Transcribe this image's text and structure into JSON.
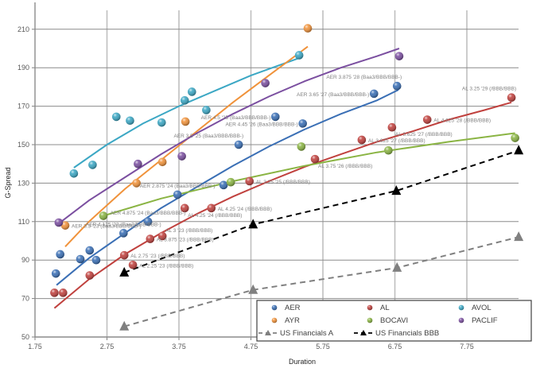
{
  "chart_data": {
    "type": "scatter",
    "title": "",
    "xlabel": "Duration",
    "ylabel": "G-Spread",
    "xlim": [
      1.75,
      8.6
    ],
    "ylim": [
      50,
      220
    ],
    "xticks": [
      1.75,
      2.75,
      3.75,
      4.75,
      5.75,
      6.75,
      7.75
    ],
    "xtick_labels": [
      "1.75",
      "2.75",
      "3.75",
      "4.75",
      "5.75",
      "6.75",
      "7.75"
    ],
    "yticks": [
      50,
      70,
      90,
      110,
      130,
      150,
      170,
      190,
      210
    ],
    "ytick_labels": [
      "50",
      "70",
      "90",
      "110",
      "130",
      "150",
      "170",
      "190",
      "210"
    ],
    "grid": true,
    "legend_position": "bottom-right",
    "series": [
      {
        "name": "AER",
        "kind": "points",
        "color": "#3a6fb5",
        "points": [
          [
            2.04,
            83
          ],
          [
            2.1,
            93
          ],
          [
            2.38,
            90.5
          ],
          [
            2.51,
            95
          ],
          [
            2.6,
            90
          ],
          [
            2.98,
            104
          ],
          [
            3.32,
            110
          ],
          [
            3.73,
            124
          ],
          [
            4.37,
            129
          ],
          [
            4.58,
            150
          ],
          [
            5.09,
            164.5
          ],
          [
            5.47,
            161
          ],
          [
            6.46,
            176.5
          ],
          [
            6.78,
            180.5
          ]
        ],
        "trend": [
          [
            2.05,
            77
          ],
          [
            2.5,
            91
          ],
          [
            3.0,
            104
          ],
          [
            3.5,
            117
          ],
          [
            4.0,
            128
          ],
          [
            4.5,
            139
          ],
          [
            5.0,
            149
          ],
          [
            5.5,
            158
          ],
          [
            6.0,
            166
          ],
          [
            6.5,
            173
          ],
          [
            6.8,
            178.5
          ]
        ]
      },
      {
        "name": "AL",
        "kind": "points",
        "color": "#c0413e",
        "points": [
          [
            2.02,
            73
          ],
          [
            2.14,
            73
          ],
          [
            2.51,
            82
          ],
          [
            2.99,
            92.5
          ],
          [
            3.11,
            87.5
          ],
          [
            3.35,
            101
          ],
          [
            3.52,
            102.5
          ],
          [
            3.83,
            117
          ],
          [
            4.2,
            117
          ],
          [
            4.73,
            131
          ],
          [
            5.64,
            142.5
          ],
          [
            6.29,
            152.5
          ],
          [
            6.71,
            159
          ],
          [
            7.2,
            163
          ],
          [
            8.37,
            174.5
          ]
        ],
        "trend": [
          [
            2.02,
            65
          ],
          [
            2.5,
            80
          ],
          [
            3.0,
            93
          ],
          [
            3.5,
            104
          ],
          [
            4.0,
            114
          ],
          [
            4.5,
            123
          ],
          [
            5.0,
            131
          ],
          [
            5.5,
            138.5
          ],
          [
            6.0,
            145
          ],
          [
            6.5,
            151.5
          ],
          [
            7.0,
            157
          ],
          [
            7.5,
            163
          ],
          [
            8.0,
            168
          ],
          [
            8.37,
            172
          ]
        ]
      },
      {
        "name": "AVOL",
        "kind": "points",
        "color": "#3ba7c4",
        "points": [
          [
            2.29,
            135
          ],
          [
            2.55,
            139.5
          ],
          [
            2.88,
            164.5
          ],
          [
            3.07,
            162.5
          ],
          [
            3.51,
            161.5
          ],
          [
            3.83,
            173
          ],
          [
            3.93,
            177.5
          ],
          [
            4.13,
            168
          ],
          [
            5.42,
            196.5
          ]
        ],
        "trend": [
          [
            2.29,
            138
          ],
          [
            2.75,
            150
          ],
          [
            3.25,
            161
          ],
          [
            3.75,
            170
          ],
          [
            4.25,
            178
          ],
          [
            4.75,
            186
          ],
          [
            5.42,
            195
          ]
        ]
      },
      {
        "name": "AYR",
        "kind": "points",
        "color": "#f0923a",
        "points": [
          [
            2.17,
            108
          ],
          [
            3.16,
            130
          ],
          [
            3.52,
            141
          ],
          [
            3.84,
            162
          ],
          [
            5.54,
            210.5
          ]
        ],
        "trend": [
          [
            2.17,
            97
          ],
          [
            2.5,
            110
          ],
          [
            3.0,
            127
          ],
          [
            3.5,
            142
          ],
          [
            4.0,
            157
          ],
          [
            4.5,
            172
          ],
          [
            5.0,
            186
          ],
          [
            5.54,
            201
          ]
        ]
      },
      {
        "name": "BOCAVI",
        "kind": "points",
        "color": "#8ab443",
        "points": [
          [
            2.7,
            113
          ],
          [
            4.47,
            130.5
          ],
          [
            5.45,
            149
          ],
          [
            6.66,
            147
          ],
          [
            8.42,
            153.5
          ]
        ],
        "trend": [
          [
            2.7,
            113
          ],
          [
            3.5,
            122
          ],
          [
            4.5,
            131
          ],
          [
            5.5,
            139
          ],
          [
            6.5,
            146
          ],
          [
            7.5,
            151.5
          ],
          [
            8.42,
            156
          ]
        ]
      },
      {
        "name": "PACLIF",
        "kind": "points",
        "color": "#7b4fa0",
        "points": [
          [
            2.08,
            109.5
          ],
          [
            3.18,
            140
          ],
          [
            3.79,
            144
          ],
          [
            4.95,
            182
          ],
          [
            6.81,
            196
          ]
        ],
        "trend": [
          [
            2.08,
            109
          ],
          [
            2.5,
            121
          ],
          [
            3.0,
            133
          ],
          [
            3.5,
            145
          ],
          [
            4.0,
            156
          ],
          [
            4.5,
            166
          ],
          [
            5.0,
            175
          ],
          [
            5.5,
            183
          ],
          [
            6.0,
            190
          ],
          [
            6.5,
            196
          ],
          [
            6.81,
            200
          ]
        ]
      },
      {
        "name": "US Financials A",
        "kind": "dashed-triangle",
        "color": "#808080",
        "points": [
          [
            2.99,
            55.5
          ],
          [
            4.78,
            74.5
          ],
          [
            6.78,
            86
          ],
          [
            8.47,
            102
          ]
        ]
      },
      {
        "name": "US Financials BBB",
        "kind": "dashed-triangle",
        "color": "#000000",
        "points": [
          [
            2.99,
            83.5
          ],
          [
            4.78,
            108.5
          ],
          [
            6.77,
            126
          ],
          [
            8.47,
            147
          ]
        ]
      }
    ],
    "annotations": [
      {
        "text": "AER 3.875 '28 (Baa3/BBB/BBB-)",
        "x": 6.78,
        "y": 180.5,
        "anchor": "above-left"
      },
      {
        "text": "AER 3.65 '27 (Baa3/BBB/BBB-)",
        "x": 6.46,
        "y": 176.5,
        "anchor": "left"
      },
      {
        "text": "AER 4.5 '25 (Baa3/BBB/BBB-)",
        "x": 5.09,
        "y": 164.5,
        "anchor": "left"
      },
      {
        "text": "AER 4.45 '26 (Baa3/BBB/BBB-)",
        "x": 5.47,
        "y": 161,
        "anchor": "left"
      },
      {
        "text": "AER 3.5 '25 (Baa3/BBB/BBB-)",
        "x": 4.58,
        "y": 150,
        "anchor": "above-left"
      },
      {
        "text": "AER 2.875 '24 (Baa3/BBB/BBB-)",
        "x": 3.73,
        "y": 124,
        "anchor": "above"
      },
      {
        "text": "AER 4.875 '24 (Baa3/BBB/BBB-)",
        "x": 3.32,
        "y": 110,
        "anchor": "above"
      },
      {
        "text": "AER 4.125 '23 (Baa3/BBB/BBB-)",
        "x": 2.98,
        "y": 104,
        "anchor": "above"
      },
      {
        "text": "AER 3.3 '23 (Baa3/BBB/BBB-)",
        "x": 2.17,
        "y": 108,
        "anchor": "right"
      },
      {
        "text": "AL 3.25 '29 (/BBB/BBB)",
        "x": 8.37,
        "y": 174.5,
        "anchor": "above-left"
      },
      {
        "text": "AL 4.625 '28 (/BBB/BBB)",
        "x": 7.2,
        "y": 163,
        "anchor": "right"
      },
      {
        "text": "AL 3.625 '27 (/BBB/BBB)",
        "x": 6.71,
        "y": 159,
        "anchor": "below-right"
      },
      {
        "text": "AL 3.625 '27 (/BBB/BBB)",
        "x": 6.29,
        "y": 152.5,
        "anchor": "right"
      },
      {
        "text": "AL 3.75 '26 (/BBB/BBB)",
        "x": 5.64,
        "y": 142.5,
        "anchor": "below-right"
      },
      {
        "text": "AL 3.25 '25 (/BBB/BBB)",
        "x": 4.73,
        "y": 131,
        "anchor": "right"
      },
      {
        "text": "AL 4.25 '24 (/BBB/BBB)",
        "x": 4.2,
        "y": 117,
        "anchor": "right"
      },
      {
        "text": "AL 4.25 '24 (/BBB/BBB)",
        "x": 3.83,
        "y": 117,
        "anchor": "below-right"
      },
      {
        "text": "AL 3 '23 (/BBB/BBB)",
        "x": 3.52,
        "y": 102.5,
        "anchor": "above-right"
      },
      {
        "text": "AL 3.875 '23 (/BBB/BBB)",
        "x": 3.35,
        "y": 101,
        "anchor": "right"
      },
      {
        "text": "AL 2.75 '23 (/BBB/BBB)",
        "x": 2.99,
        "y": 92.5,
        "anchor": "right"
      },
      {
        "text": "AL 2.25 '23 (/BBB/BBB)",
        "x": 3.11,
        "y": 87.5,
        "anchor": "right"
      }
    ]
  },
  "legend": {
    "items": [
      {
        "label": "AER",
        "color": "#3a6fb5",
        "marker": "circle"
      },
      {
        "label": "AL",
        "color": "#c0413e",
        "marker": "circle"
      },
      {
        "label": "AVOL",
        "color": "#3ba7c4",
        "marker": "circle"
      },
      {
        "label": "AYR",
        "color": "#f0923a",
        "marker": "circle"
      },
      {
        "label": "BOCAVI",
        "color": "#8ab443",
        "marker": "circle"
      },
      {
        "label": "PACLIF",
        "color": "#7b4fa0",
        "marker": "circle"
      },
      {
        "label": "US Financials A",
        "color": "#808080",
        "marker": "dashed-triangle"
      },
      {
        "label": "US Financials BBB",
        "color": "#000000",
        "marker": "dashed-triangle"
      }
    ]
  }
}
